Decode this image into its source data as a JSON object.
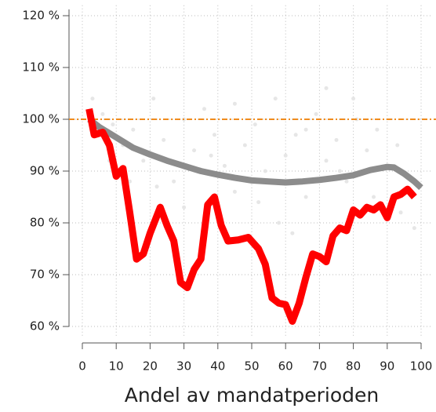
{
  "chart_data": {
    "type": "line",
    "xlabel": "Andel av mandatperioden",
    "xlim": [
      0,
      100
    ],
    "xticks": [
      0,
      10,
      20,
      30,
      40,
      50,
      60,
      70,
      80,
      90,
      100
    ],
    "ylim": [
      58,
      122
    ],
    "yticks": [
      {
        "value": 60,
        "label": "60 %"
      },
      {
        "value": 70,
        "label": "70 %"
      },
      {
        "value": 80,
        "label": "80 %"
      },
      {
        "value": 90,
        "label": "90 %"
      },
      {
        "value": 100,
        "label": "100 %"
      },
      {
        "value": 110,
        "label": "110 %"
      },
      {
        "value": 120,
        "label": "120 %"
      }
    ],
    "grid": true,
    "reference_line": {
      "value": 100,
      "color": "#f08c1e"
    },
    "points": {
      "color": "#e6e6e6",
      "x": [
        3,
        6,
        9,
        12,
        15,
        18,
        21,
        24,
        27,
        30,
        33,
        36,
        39,
        42,
        45,
        48,
        51,
        54,
        57,
        60,
        63,
        66,
        69,
        72,
        75,
        78,
        81,
        84,
        87,
        90,
        93,
        96,
        8,
        22,
        38,
        52,
        66,
        80,
        94,
        45,
        58,
        72,
        86,
        30,
        14,
        62,
        76,
        90,
        98
      ],
      "values": [
        104,
        101,
        99,
        95,
        98,
        92,
        104,
        96,
        88,
        100,
        94,
        102,
        97,
        91,
        103,
        95,
        99,
        90,
        104,
        93,
        97,
        85,
        101,
        92,
        96,
        88,
        100,
        94,
        98,
        91,
        95,
        89,
        92,
        87,
        93,
        84,
        98,
        104,
        82,
        86,
        80,
        106,
        85,
        83,
        88,
        78,
        90,
        82,
        79
      ]
    },
    "series": [
      {
        "color": "#8c8c8c",
        "x": [
          2,
          5,
          10,
          15,
          20,
          25,
          30,
          35,
          40,
          45,
          50,
          55,
          60,
          65,
          70,
          75,
          80,
          85,
          90,
          92,
          95,
          98,
          100
        ],
        "values": [
          100,
          98.5,
          96.5,
          94.5,
          93.2,
          92,
          91,
          90,
          89.3,
          88.7,
          88.2,
          88,
          87.8,
          88,
          88.3,
          88.7,
          89.2,
          90.2,
          90.8,
          90.7,
          89.5,
          88,
          86.8
        ]
      },
      {
        "color": "#ff0000",
        "x": [
          2,
          3.5,
          6,
          8,
          10,
          12,
          14,
          16,
          18,
          20,
          23,
          25,
          27,
          29,
          31,
          33,
          35,
          37,
          39,
          41,
          43,
          46,
          49,
          52,
          54,
          56,
          58,
          60,
          62,
          64,
          66,
          68,
          70,
          72,
          74,
          76,
          78,
          80,
          82,
          84,
          86,
          88,
          90,
          92,
          94,
          96,
          98
        ],
        "values": [
          102,
          97,
          97.5,
          95,
          89,
          90.5,
          82,
          73,
          74,
          78,
          83,
          79.5,
          76.5,
          68.5,
          67.5,
          71,
          73,
          83.5,
          85,
          79.5,
          76.5,
          76.7,
          77.2,
          75,
          72,
          65.5,
          64.5,
          64.2,
          61,
          64.5,
          69.5,
          74,
          73.5,
          72.5,
          77.5,
          79,
          78.5,
          82.5,
          81.5,
          83,
          82.5,
          83.5,
          81,
          85,
          85.5,
          86.5,
          85
        ]
      }
    ]
  }
}
